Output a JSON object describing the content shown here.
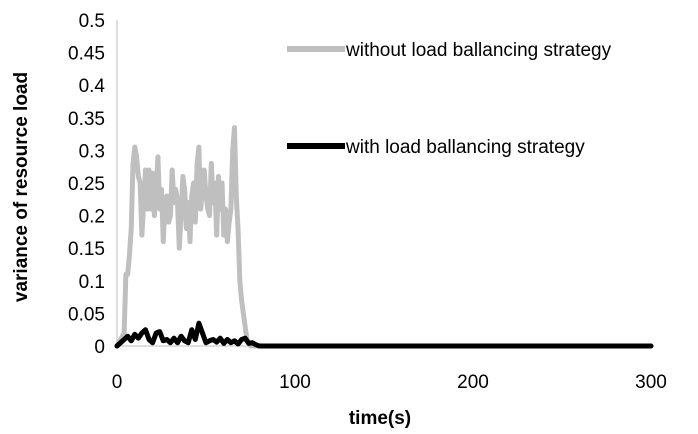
{
  "chart_data": {
    "type": "line",
    "title": "",
    "xlabel": "time(s)",
    "ylabel": "variance of resource load",
    "xlim": [
      0,
      300
    ],
    "ylim": [
      0,
      0.5
    ],
    "x_ticks": [
      0,
      100,
      200,
      300
    ],
    "x_tick_labels": [
      "0",
      "100",
      "200",
      "300"
    ],
    "y_ticks": [
      0,
      0.05,
      0.1,
      0.15,
      0.2,
      0.25,
      0.3,
      0.35,
      0.4,
      0.45,
      0.5
    ],
    "y_tick_labels": [
      "0",
      "0.05",
      "0.1",
      "0.15",
      "0.2",
      "0.25",
      "0.3",
      "0.35",
      "0.4",
      "0.45",
      "0.5"
    ],
    "grid": false,
    "legend_position": "top-right",
    "series": [
      {
        "name": "without load ballancing strategy",
        "color": "#bfbfbf",
        "x": [
          0,
          2,
          4,
          5,
          6,
          7,
          8,
          9,
          10,
          11,
          12,
          13,
          14,
          15,
          16,
          17,
          18,
          19,
          20,
          21,
          22,
          23,
          24,
          25,
          26,
          27,
          28,
          29,
          30,
          31,
          32,
          33,
          34,
          35,
          36,
          37,
          38,
          39,
          40,
          41,
          42,
          43,
          44,
          45,
          46,
          47,
          48,
          49,
          50,
          51,
          52,
          53,
          54,
          55,
          56,
          57,
          58,
          59,
          60,
          61,
          62,
          63,
          64,
          65,
          66,
          67,
          68,
          69,
          70,
          71,
          72,
          73,
          74,
          75,
          76,
          77,
          78,
          100,
          200,
          300
        ],
        "y": [
          0,
          0.01,
          0.02,
          0.11,
          0.11,
          0.14,
          0.18,
          0.28,
          0.305,
          0.29,
          0.26,
          0.25,
          0.17,
          0.22,
          0.27,
          0.21,
          0.27,
          0.21,
          0.265,
          0.2,
          0.24,
          0.29,
          0.21,
          0.24,
          0.16,
          0.22,
          0.23,
          0.19,
          0.2,
          0.27,
          0.22,
          0.24,
          0.22,
          0.15,
          0.2,
          0.26,
          0.24,
          0.18,
          0.22,
          0.16,
          0.23,
          0.25,
          0.19,
          0.28,
          0.305,
          0.21,
          0.24,
          0.27,
          0.23,
          0.21,
          0.2,
          0.28,
          0.22,
          0.25,
          0.17,
          0.26,
          0.21,
          0.25,
          0.17,
          0.21,
          0.16,
          0.19,
          0.21,
          0.3,
          0.335,
          0.23,
          0.18,
          0.1,
          0.07,
          0.05,
          0.03,
          0.01,
          0.005,
          0,
          0,
          0,
          0,
          0,
          0,
          0
        ]
      },
      {
        "name": "with load ballancing strategy",
        "color": "#000000",
        "x": [
          0,
          2,
          4,
          6,
          8,
          10,
          12,
          14,
          16,
          18,
          20,
          22,
          24,
          26,
          28,
          30,
          32,
          34,
          36,
          38,
          40,
          42,
          44,
          46,
          48,
          50,
          52,
          54,
          56,
          58,
          60,
          62,
          64,
          66,
          68,
          70,
          72,
          74,
          76,
          78,
          80,
          100,
          200,
          300
        ],
        "y": [
          0,
          0.005,
          0.01,
          0.015,
          0.008,
          0.018,
          0.012,
          0.02,
          0.025,
          0.01,
          0.005,
          0.02,
          0.022,
          0.008,
          0.01,
          0.005,
          0.012,
          0.005,
          0.015,
          0.008,
          0.005,
          0.025,
          0.01,
          0.035,
          0.02,
          0.005,
          0.008,
          0.01,
          0.006,
          0.012,
          0.004,
          0.01,
          0.005,
          0.008,
          0.003,
          0.01,
          0.012,
          0.004,
          0.005,
          0.002,
          0,
          0,
          0,
          0
        ]
      }
    ]
  }
}
